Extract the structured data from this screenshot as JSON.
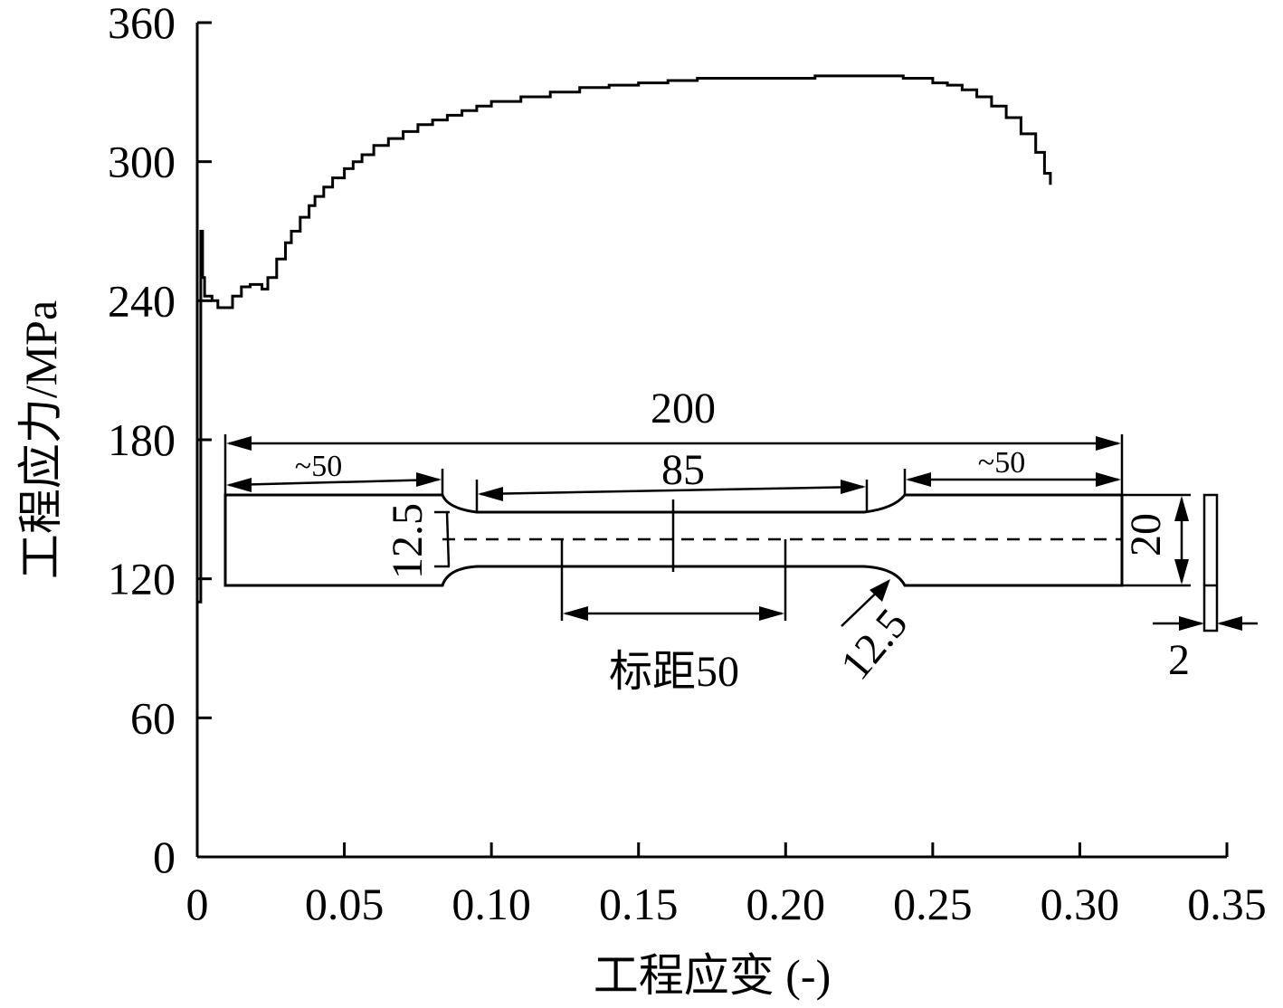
{
  "chart_data": {
    "type": "line",
    "xlabel": "工程应变 (-)",
    "ylabel": "工程应力/MPa",
    "xlim": [
      0,
      0.35
    ],
    "ylim": [
      0,
      360
    ],
    "x_ticks": [
      "0",
      "0.05",
      "0.10",
      "0.15",
      "0.20",
      "0.25",
      "0.30",
      "0.35"
    ],
    "y_ticks": [
      "0",
      "60",
      "120",
      "180",
      "240",
      "300",
      "360"
    ],
    "x": [
      0,
      0.0012,
      0.0018,
      0.0025,
      0.005,
      0.007,
      0.009,
      0.012,
      0.015,
      0.018,
      0.022,
      0.024,
      0.027,
      0.03,
      0.032,
      0.035,
      0.038,
      0.04,
      0.043,
      0.046,
      0.05,
      0.053,
      0.056,
      0.06,
      0.065,
      0.07,
      0.075,
      0.08,
      0.085,
      0.09,
      0.095,
      0.1,
      0.11,
      0.12,
      0.13,
      0.14,
      0.15,
      0.16,
      0.17,
      0.18,
      0.19,
      0.2,
      0.21,
      0.22,
      0.23,
      0.24,
      0.25,
      0.255,
      0.26,
      0.265,
      0.27,
      0.275,
      0.28,
      0.285,
      0.288,
      0.29
    ],
    "y": [
      110,
      270,
      250,
      242,
      240,
      237,
      237,
      242,
      246,
      247,
      245,
      250,
      258,
      265,
      270,
      276,
      281,
      285,
      289,
      293,
      297,
      300,
      303,
      307,
      310,
      313,
      316,
      318,
      320,
      322,
      324,
      326,
      328,
      330,
      332,
      333,
      334,
      335,
      336,
      336,
      336,
      336,
      337,
      337,
      337,
      336,
      334,
      333,
      331,
      328,
      324,
      319,
      312,
      304,
      295,
      290
    ],
    "inset_labels": {
      "total_length": "200",
      "grip_left": "~50",
      "grip_right": "~50",
      "parallel_length": "85",
      "radius_left": "12.5",
      "radius_right": "12.5",
      "grip_width": "20",
      "thickness": "2",
      "gauge_length": "标距50"
    }
  }
}
